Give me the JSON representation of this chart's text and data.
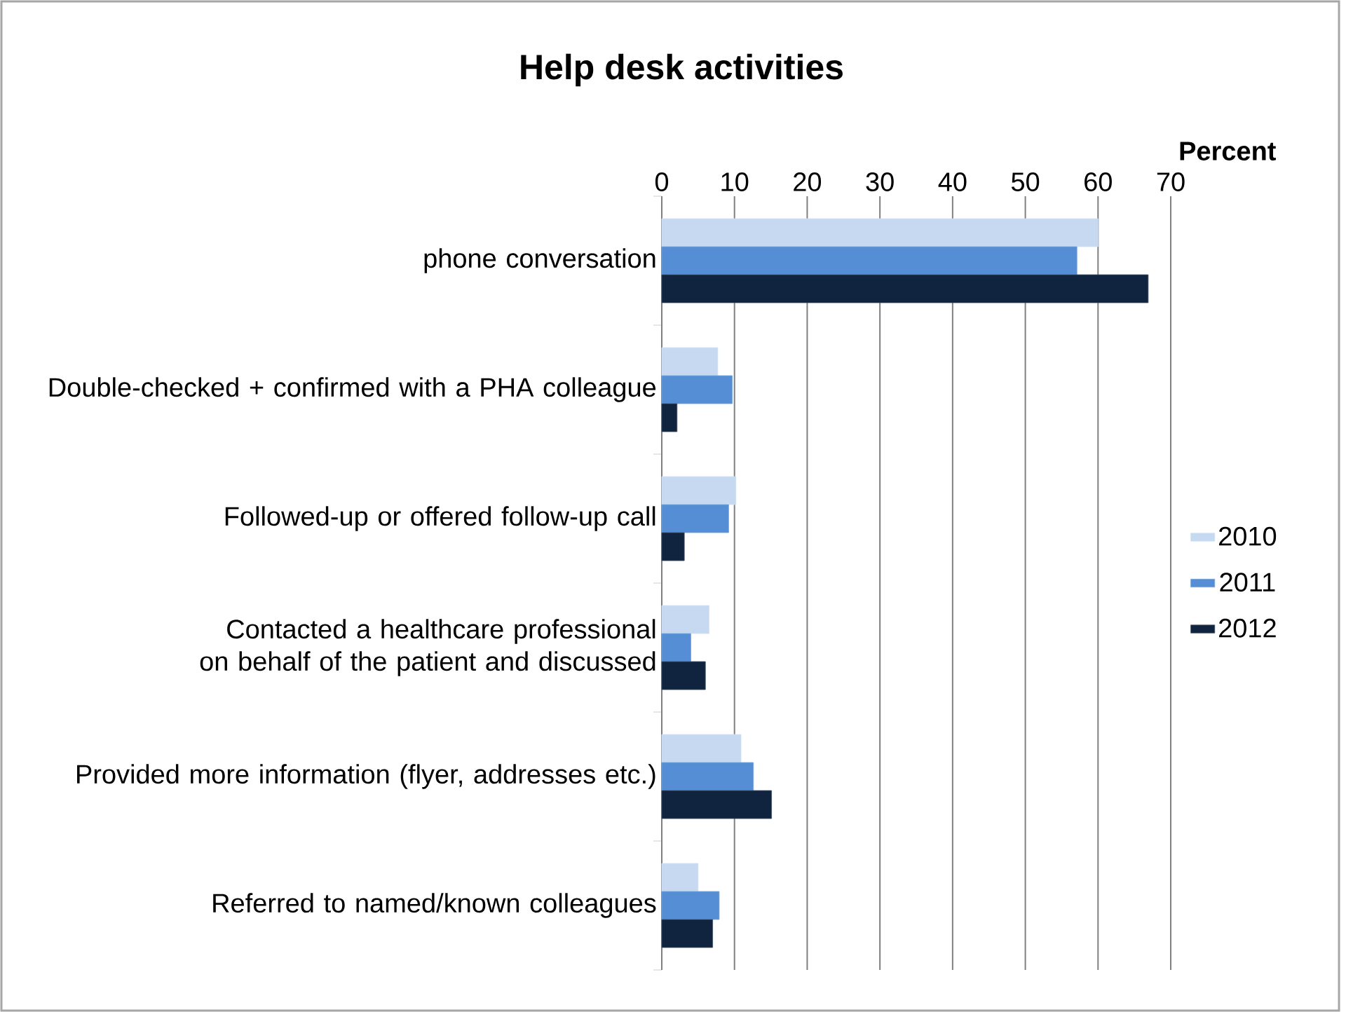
{
  "chart_data": {
    "type": "bar",
    "orientation": "horizontal",
    "title": "Help desk activities",
    "xlabel": "Percent",
    "categories": [
      "phone conversation",
      "Double-checked + confirmed with a PHA colleague",
      "Followed-up or offered follow-up call",
      "Contacted a healthcare professional on behalf of the patient and discussed",
      "Provided more information (flyer, addresses etc.)",
      "Referred to named/known colleagues"
    ],
    "series": [
      {
        "name": "2010",
        "color": "#c6d9f1",
        "values": [
          60.0,
          7.7,
          10.2,
          6.5,
          10.9,
          5.0
        ]
      },
      {
        "name": "2011",
        "color": "#558ed5",
        "values": [
          57.1,
          9.7,
          9.2,
          4.0,
          12.6,
          7.9
        ]
      },
      {
        "name": "2012",
        "color": "#10243f",
        "values": [
          66.9,
          2.1,
          3.1,
          6.0,
          15.1,
          7.0
        ]
      }
    ],
    "xlim": [
      0,
      70
    ],
    "xticks": [
      0,
      10,
      20,
      30,
      40,
      50,
      60,
      70
    ],
    "grid": "x",
    "legend": "right"
  }
}
